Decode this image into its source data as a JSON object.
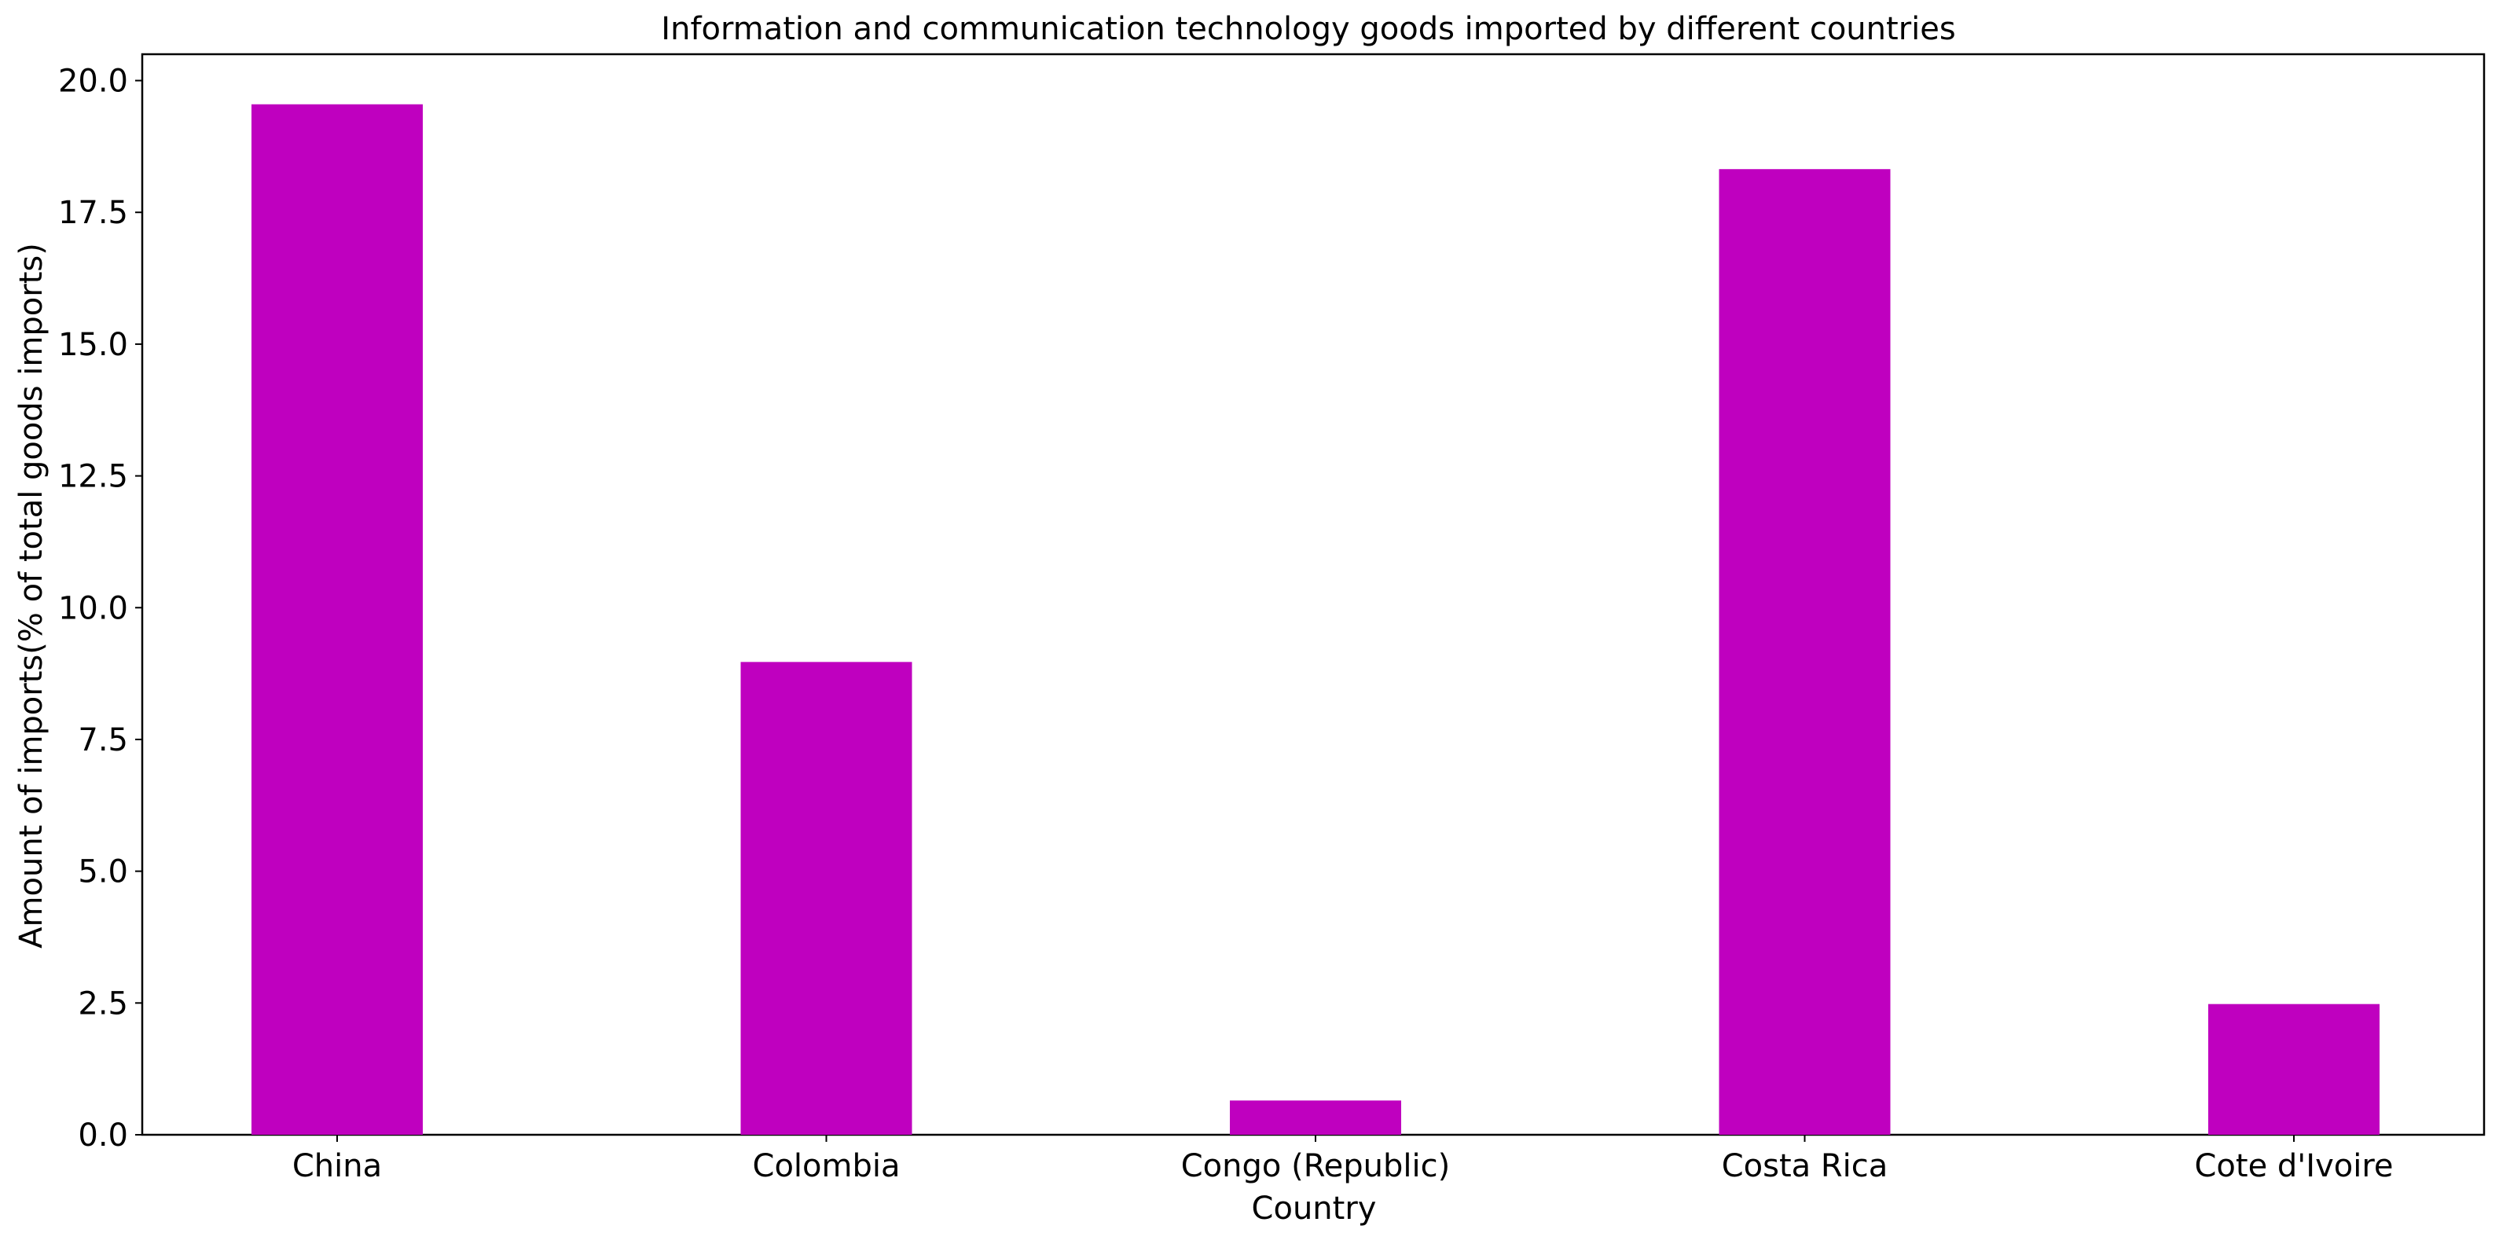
{
  "chart_data": {
    "type": "bar",
    "title": "Information and communication technology goods imported by different countries",
    "xlabel": "Country",
    "ylabel": "Amount of imports(% of total goods imports)",
    "categories": [
      "China",
      "Colombia",
      "Congo (Republic)",
      "Costa Rica",
      "Cote d'Ivoire"
    ],
    "series": [
      {
        "values": [
          19.55,
          8.97,
          0.65,
          18.32,
          2.48
        ],
        "color": "#bf00bf"
      }
    ],
    "ylim": [
      0,
      20.5
    ],
    "yticks": [
      0.0,
      2.5,
      5.0,
      7.5,
      10.0,
      12.5,
      15.0,
      17.5,
      20.0
    ],
    "ytick_labels": [
      "0.0",
      "2.5",
      "5.0",
      "7.5",
      "10.0",
      "12.5",
      "15.0",
      "17.5",
      "20.0"
    ],
    "grid": false,
    "legend": "none"
  }
}
